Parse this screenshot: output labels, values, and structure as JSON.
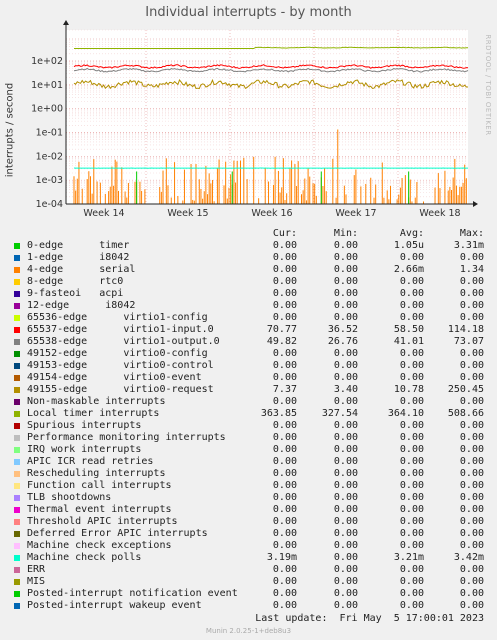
{
  "title": "Individual interrupts - by month",
  "side_tag": "RRDTOOL / TOBI OETIKER",
  "footer": "Munin 2.0.25-1+deb8u3",
  "last_update": "Last update:  Fri May  5 17:00:01 2023",
  "legend_headers": {
    "cur": "Cur:",
    "min": "Min:",
    "avg": "Avg:",
    "max": "Max:"
  },
  "legend": [
    {
      "label": "0-edge      timer",
      "color": "#00cc00",
      "cur": "0.00",
      "min": "0.00",
      "avg": "1.05u",
      "max": "3.31m"
    },
    {
      "label": "1-edge      i8042",
      "color": "#0066b3",
      "cur": "0.00",
      "min": "0.00",
      "avg": "0.00",
      "max": "0.00"
    },
    {
      "label": "4-edge      serial",
      "color": "#ff8000",
      "cur": "0.00",
      "min": "0.00",
      "avg": "2.66m",
      "max": "1.34"
    },
    {
      "label": "8-edge      rtc0",
      "color": "#ffcc00",
      "cur": "0.00",
      "min": "0.00",
      "avg": "0.00",
      "max": "0.00"
    },
    {
      "label": "9-fasteoi   acpi",
      "color": "#330099",
      "cur": "0.00",
      "min": "0.00",
      "avg": "0.00",
      "max": "0.00"
    },
    {
      "label": "12-edge      i8042",
      "color": "#990099",
      "cur": "0.00",
      "min": "0.00",
      "avg": "0.00",
      "max": "0.00"
    },
    {
      "label": "65536-edge      virtio1-config",
      "color": "#ccff00",
      "cur": "0.00",
      "min": "0.00",
      "avg": "0.00",
      "max": "0.00"
    },
    {
      "label": "65537-edge      virtio1-input.0",
      "color": "#ff0000",
      "cur": "70.77",
      "min": "36.52",
      "avg": "58.50",
      "max": "114.18"
    },
    {
      "label": "65538-edge      virtio1-output.0",
      "color": "#808080",
      "cur": "49.82",
      "min": "26.76",
      "avg": "41.01",
      "max": "73.07"
    },
    {
      "label": "49152-edge      virtio0-config",
      "color": "#008f00",
      "cur": "0.00",
      "min": "0.00",
      "avg": "0.00",
      "max": "0.00"
    },
    {
      "label": "49153-edge      virtio0-control",
      "color": "#00487d",
      "cur": "0.00",
      "min": "0.00",
      "avg": "0.00",
      "max": "0.00"
    },
    {
      "label": "49154-edge      virtio0-event",
      "color": "#b35a00",
      "cur": "0.00",
      "min": "0.00",
      "avg": "0.00",
      "max": "0.00"
    },
    {
      "label": "49155-edge      virtio0-request",
      "color": "#b38f00",
      "cur": "7.37",
      "min": "3.40",
      "avg": "10.78",
      "max": "250.45"
    },
    {
      "label": "Non-maskable interrupts",
      "color": "#6b006b",
      "cur": "0.00",
      "min": "0.00",
      "avg": "0.00",
      "max": "0.00"
    },
    {
      "label": "Local timer interrupts",
      "color": "#8fb300",
      "cur": "363.85",
      "min": "327.54",
      "avg": "364.10",
      "max": "508.66"
    },
    {
      "label": "Spurious interrupts",
      "color": "#b30000",
      "cur": "0.00",
      "min": "0.00",
      "avg": "0.00",
      "max": "0.00"
    },
    {
      "label": "Performance monitoring interrupts",
      "color": "#bebebe",
      "cur": "0.00",
      "min": "0.00",
      "avg": "0.00",
      "max": "0.00"
    },
    {
      "label": "IRQ work interrupts",
      "color": "#80ff80",
      "cur": "0.00",
      "min": "0.00",
      "avg": "0.00",
      "max": "0.00"
    },
    {
      "label": "APIC ICR read retries",
      "color": "#80c9ff",
      "cur": "0.00",
      "min": "0.00",
      "avg": "0.00",
      "max": "0.00"
    },
    {
      "label": "Rescheduling interrupts",
      "color": "#ffc080",
      "cur": "0.00",
      "min": "0.00",
      "avg": "0.00",
      "max": "0.00"
    },
    {
      "label": "Function call interrupts",
      "color": "#ffe680",
      "cur": "0.00",
      "min": "0.00",
      "avg": "0.00",
      "max": "0.00"
    },
    {
      "label": "TLB shootdowns",
      "color": "#aa80ff",
      "cur": "0.00",
      "min": "0.00",
      "avg": "0.00",
      "max": "0.00"
    },
    {
      "label": "Thermal event interrupts",
      "color": "#ee00cc",
      "cur": "0.00",
      "min": "0.00",
      "avg": "0.00",
      "max": "0.00"
    },
    {
      "label": "Threshold APIC interrupts",
      "color": "#ff8080",
      "cur": "0.00",
      "min": "0.00",
      "avg": "0.00",
      "max": "0.00"
    },
    {
      "label": "Deferred Error APIC interrupts",
      "color": "#666600",
      "cur": "0.00",
      "min": "0.00",
      "avg": "0.00",
      "max": "0.00"
    },
    {
      "label": "Machine check exceptions",
      "color": "#ffbfff",
      "cur": "0.00",
      "min": "0.00",
      "avg": "0.00",
      "max": "0.00"
    },
    {
      "label": "Machine check polls",
      "color": "#00ffcc",
      "cur": "3.19m",
      "min": "0.00",
      "avg": "3.21m",
      "max": "3.42m"
    },
    {
      "label": "ERR",
      "color": "#cc6699",
      "cur": "0.00",
      "min": "0.00",
      "avg": "0.00",
      "max": "0.00"
    },
    {
      "label": "MIS",
      "color": "#999900",
      "cur": "0.00",
      "min": "0.00",
      "avg": "0.00",
      "max": "0.00"
    },
    {
      "label": "Posted-interrupt notification event",
      "color": "#00cc00",
      "cur": "0.00",
      "min": "0.00",
      "avg": "0.00",
      "max": "0.00"
    },
    {
      "label": "Posted-interrupt wakeup event",
      "color": "#0066b3",
      "cur": "0.00",
      "min": "0.00",
      "avg": "0.00",
      "max": "0.00"
    }
  ],
  "chart_data": {
    "type": "line",
    "title": "Individual interrupts - by month",
    "ylabel": "interrupts / second",
    "yscale": "log",
    "ylim": [
      0.0001,
      2000
    ],
    "yticks": [
      "1e+02",
      "1e+01",
      "1e+00",
      "1e-01",
      "1e-02",
      "1e-03",
      "1e-04"
    ],
    "xticks": [
      "Week 14",
      "Week 15",
      "Week 16",
      "Week 17",
      "Week 18"
    ],
    "grid": true,
    "series": [
      {
        "name": "Local timer interrupts",
        "color": "#8fb300",
        "min": 327.54,
        "avg": 364.1,
        "max": 508.66,
        "cur": 363.85
      },
      {
        "name": "65537-edge virtio1-input.0",
        "color": "#ff0000",
        "min": 36.52,
        "avg": 58.5,
        "max": 114.18,
        "cur": 70.77
      },
      {
        "name": "65538-edge virtio1-output.0",
        "color": "#808080",
        "min": 26.76,
        "avg": 41.01,
        "max": 73.07,
        "cur": 49.82
      },
      {
        "name": "49155-edge virtio0-request",
        "color": "#b38f00",
        "min": 3.4,
        "avg": 10.78,
        "max": 250.45,
        "cur": 7.37
      },
      {
        "name": "Machine check polls",
        "color": "#00ffcc",
        "min": 0,
        "avg": 0.00321,
        "max": 0.00342,
        "cur": 0.00319
      },
      {
        "name": "4-edge serial",
        "color": "#ff8000",
        "min": 0,
        "avg": 0.00266,
        "max": 1.34,
        "cur": 0
      },
      {
        "name": "0-edge timer",
        "color": "#00cc00",
        "min": 0,
        "avg": 1.05e-06,
        "max": 0.00331,
        "cur": 0
      }
    ]
  }
}
